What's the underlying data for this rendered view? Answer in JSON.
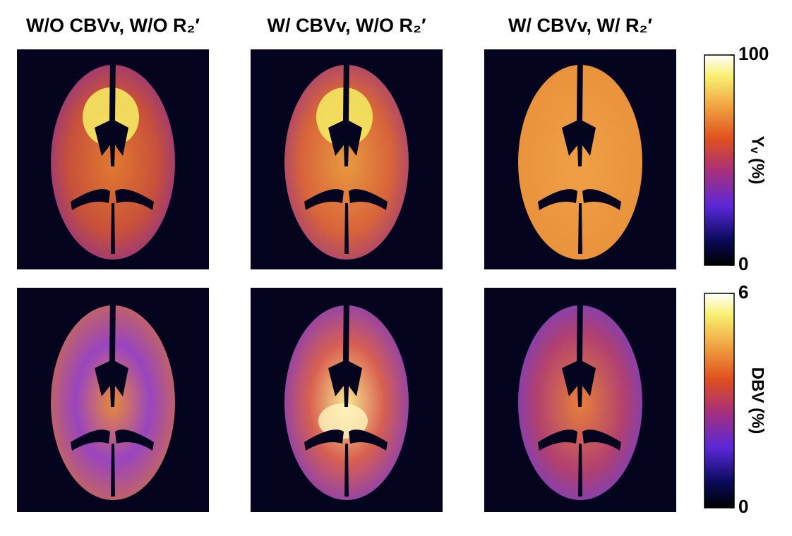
{
  "columns": [
    {
      "title": "W/O CBVv, W/O R₂′"
    },
    {
      "title": "W/ CBVv, W/O R₂′"
    },
    {
      "title": "W/ CBVv, W/ R₂′"
    }
  ],
  "rows": [
    {
      "colorbar": {
        "label": "Yᵥ (%)",
        "lim": [
          0,
          100
        ],
        "ticks": [
          0,
          100
        ]
      }
    },
    {
      "colorbar": {
        "label": "DBV (%)",
        "lim": [
          0,
          6
        ],
        "ticks": [
          0,
          6
        ]
      }
    }
  ]
}
